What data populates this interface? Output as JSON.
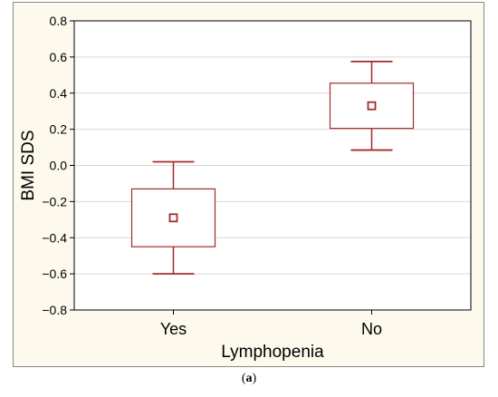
{
  "chart_data": {
    "type": "box",
    "categories": [
      "Yes",
      "No"
    ],
    "series": [
      {
        "boxes": [
          {
            "category": "Yes",
            "mean": -0.29,
            "box_low": -0.45,
            "box_high": -0.13,
            "whisker_low": -0.6,
            "whisker_high": 0.02
          },
          {
            "category": "No",
            "mean": 0.33,
            "box_low": 0.205,
            "box_high": 0.455,
            "whisker_low": 0.085,
            "whisker_high": 0.575
          }
        ]
      }
    ],
    "xlabel": "Lymphopenia",
    "ylabel": "BMI SDS",
    "ylim": [
      -0.8,
      0.8
    ],
    "yticks": [
      -0.8,
      -0.6,
      -0.4,
      -0.2,
      0.0,
      0.2,
      0.4,
      0.6,
      0.8
    ],
    "ytick_labels": [
      "−0.8",
      "−0.6",
      "−0.4",
      "−0.2",
      "0.0",
      "0.2",
      "0.4",
      "0.6",
      "0.8"
    ],
    "grid": true,
    "colors": {
      "box": "#a52a2a",
      "background": "#fdf9ec",
      "plot_background": "#ffffff",
      "grid": "#d9d9d9"
    }
  },
  "caption": {
    "open": "(",
    "letter": "a",
    "close": ")"
  }
}
